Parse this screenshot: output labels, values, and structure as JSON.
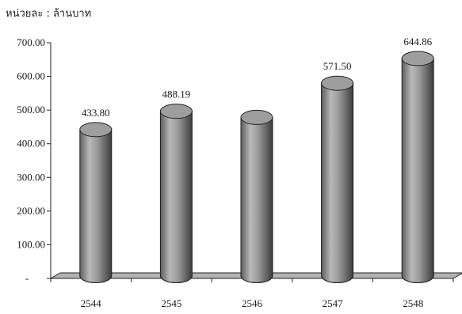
{
  "unit_note": "หน่วยละ : ล้านบาท",
  "chart_data": {
    "type": "bar",
    "title": "",
    "xlabel": "",
    "ylabel": "",
    "categories": [
      "2544",
      "2545",
      "2546",
      "2547",
      "2548"
    ],
    "values": [
      433.8,
      488.19,
      470.0,
      571.5,
      644.86
    ],
    "data_labels": [
      "433.80",
      "488.19",
      "",
      "571.50",
      "644.86"
    ],
    "ylim": [
      0,
      700
    ],
    "yticks": [
      0,
      100,
      200,
      300,
      400,
      500,
      600,
      700
    ],
    "ytick_labels": [
      "-",
      "100.00",
      "200.00",
      "300.00",
      "400.00",
      "500.00",
      "600.00",
      "700.00"
    ],
    "style": "3d-cylinder",
    "bar_color": "#8c8c8c",
    "floor_color": "#b3b3b3",
    "grid": false,
    "legend": "none"
  }
}
